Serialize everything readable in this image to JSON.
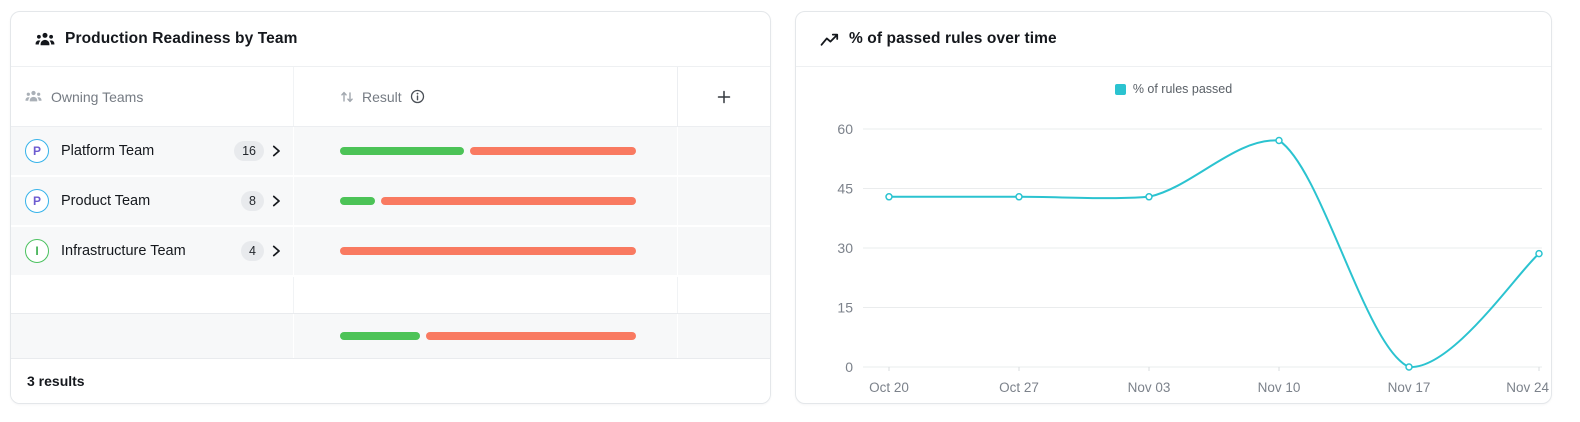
{
  "left_card": {
    "title": "Production Readiness by Team",
    "table": {
      "teams_header": "Owning Teams",
      "result_header": "Result"
    },
    "teams": [
      {
        "initial": "P",
        "name": "Platform Team",
        "count": "16",
        "passed_pct": 43,
        "ring": "#36b3ea",
        "letter": "#6d5bd0"
      },
      {
        "initial": "P",
        "name": "Product Team",
        "count": "8",
        "passed_pct": 13,
        "ring": "#36b3ea",
        "letter": "#6d5bd0"
      },
      {
        "initial": "I",
        "name": "Infrastructure Team",
        "count": "4",
        "passed_pct": 0,
        "ring": "#4cc260",
        "letter": "#41b154"
      }
    ],
    "summary_passed_pct": 28,
    "bar_colors": {
      "passed": "#4cc357",
      "failed": "#f97a61"
    },
    "footer": "3 results"
  },
  "chart_data": {
    "type": "line",
    "title": "% of passed rules over time",
    "x": [
      "Oct 20",
      "Oct 27",
      "Nov 03",
      "Nov 10",
      "Nov 17",
      "Nov 24"
    ],
    "series": [
      {
        "name": "% of rules passed",
        "values": [
          42.9,
          42.9,
          42.9,
          57.1,
          0,
          28.6
        ],
        "color": "#2bc3d0"
      }
    ],
    "ylim": [
      0,
      60
    ],
    "yticks": [
      0,
      15,
      30,
      45,
      60
    ],
    "xlabel": "",
    "ylabel": "",
    "grid": "horizontal-only",
    "legend_position": "top-center",
    "smooth": true,
    "markers": "hollow-circle",
    "axis_label_color": "#7c828b",
    "grid_color": "#eaeced"
  }
}
